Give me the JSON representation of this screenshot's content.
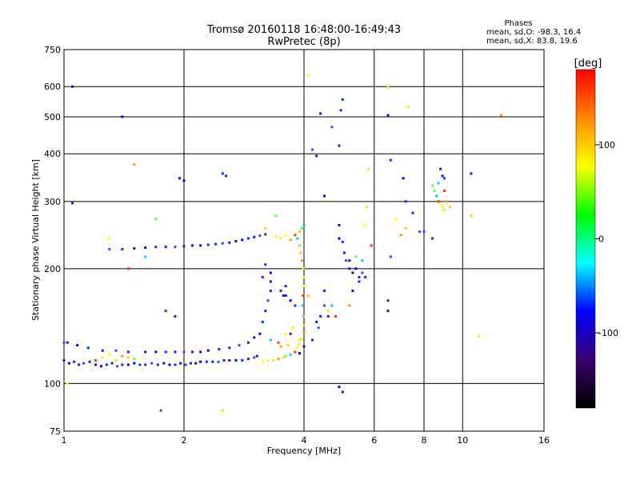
{
  "chart_data": {
    "type": "scatter",
    "title": "Tromsø 20160118 16:48:00-16:49:43",
    "subtitle": "RwPretec (8p)",
    "xlabel": "Frequency [MHz]",
    "ylabel": "Stationary phase Virtual Height [km]",
    "x_scale": "log",
    "y_scale": "log",
    "xlim": [
      1,
      16
    ],
    "ylim": [
      75,
      750
    ],
    "x_ticks": [
      1,
      2,
      4,
      6,
      8,
      10,
      16
    ],
    "x_tick_labels": [
      "1",
      "2",
      "4",
      "6",
      "8",
      "10",
      "16"
    ],
    "x_gridlines": [
      2,
      4,
      6,
      8,
      10
    ],
    "y_ticks": [
      75,
      100,
      200,
      300,
      400,
      500,
      600,
      750
    ],
    "y_tick_labels": [
      "75",
      "100",
      "200",
      "300",
      "400",
      "500",
      "600",
      "750"
    ],
    "y_gridlines": [
      100,
      200,
      300,
      400,
      500,
      600
    ],
    "grid": true,
    "legend": {
      "title": "Phases",
      "line1": "mean, sd,O: -98.3, 16.4",
      "line2": "mean, sd,X:  83.8, 19.6"
    },
    "colorbar": {
      "label": "[deg]",
      "range": [
        -180,
        180
      ],
      "ticks": [
        -100,
        0,
        100
      ],
      "tick_labels": [
        "-100",
        "0",
        "100"
      ],
      "colors": [
        "#000000",
        "#3a0070",
        "#0000ff",
        "#00ffff",
        "#00ff00",
        "#ffff00",
        "#ff8800",
        "#ff0000"
      ]
    },
    "series": [
      {
        "points": [
          [
            1.0,
            115
          ],
          [
            1.03,
            113
          ],
          [
            1.06,
            114
          ],
          [
            1.09,
            112
          ],
          [
            1.12,
            113
          ],
          [
            1.16,
            114
          ],
          [
            1.2,
            112
          ],
          [
            1.24,
            111
          ],
          [
            1.28,
            112
          ],
          [
            1.32,
            113
          ],
          [
            1.36,
            111
          ],
          [
            1.4,
            112
          ],
          [
            1.45,
            112
          ],
          [
            1.5,
            113
          ],
          [
            1.55,
            112
          ],
          [
            1.6,
            112
          ],
          [
            1.66,
            113
          ],
          [
            1.72,
            112
          ],
          [
            1.78,
            113
          ],
          [
            1.84,
            112
          ],
          [
            1.9,
            112
          ],
          [
            1.96,
            113
          ],
          [
            2.02,
            112
          ],
          [
            2.08,
            113
          ],
          [
            2.14,
            113
          ],
          [
            2.2,
            114
          ],
          [
            2.28,
            114
          ],
          [
            2.36,
            114
          ],
          [
            2.44,
            114
          ],
          [
            2.52,
            115
          ],
          [
            2.6,
            115
          ],
          [
            2.7,
            115
          ],
          [
            2.8,
            115
          ],
          [
            2.9,
            116
          ],
          [
            3.0,
            117
          ],
          [
            3.05,
            118
          ],
          [
            1.02,
            128
          ],
          [
            1.08,
            126
          ],
          [
            1.15,
            124
          ],
          [
            1.25,
            122
          ],
          [
            1.35,
            122
          ],
          [
            1.45,
            121
          ],
          [
            1.6,
            121
          ],
          [
            1.7,
            121
          ],
          [
            1.8,
            121
          ],
          [
            1.9,
            121
          ],
          [
            2.0,
            121
          ],
          [
            2.1,
            121
          ],
          [
            2.2,
            121
          ],
          [
            2.3,
            122
          ],
          [
            2.45,
            123
          ],
          [
            2.6,
            124
          ],
          [
            2.75,
            126
          ],
          [
            2.9,
            128
          ],
          [
            3.0,
            132
          ],
          [
            3.1,
            135
          ],
          [
            3.15,
            145
          ],
          [
            3.2,
            155
          ],
          [
            3.25,
            165
          ],
          [
            3.3,
            175
          ],
          [
            3.3,
            185
          ],
          [
            3.3,
            195
          ],
          [
            3.2,
            205
          ],
          [
            3.15,
            190
          ],
          [
            1.3,
            225
          ],
          [
            1.4,
            225
          ],
          [
            1.5,
            226
          ],
          [
            1.6,
            227
          ],
          [
            1.7,
            228
          ],
          [
            1.8,
            228
          ],
          [
            1.9,
            228
          ],
          [
            2.0,
            229
          ],
          [
            2.1,
            230
          ],
          [
            2.2,
            230
          ],
          [
            2.3,
            231
          ],
          [
            2.4,
            232
          ],
          [
            2.5,
            233
          ],
          [
            2.6,
            234
          ],
          [
            2.7,
            236
          ],
          [
            2.8,
            238
          ],
          [
            2.9,
            240
          ],
          [
            3.0,
            242
          ],
          [
            3.1,
            244
          ],
          [
            3.2,
            246
          ],
          [
            1.95,
            345
          ],
          [
            2.0,
            340
          ],
          [
            2.5,
            355
          ],
          [
            2.55,
            350
          ],
          [
            1.0,
            128
          ],
          [
            1.05,
            297
          ],
          [
            1.05,
            600
          ],
          [
            1.4,
            500
          ],
          [
            1.8,
            155
          ],
          [
            1.9,
            150
          ],
          [
            1.75,
            85
          ],
          [
            3.5,
            175
          ],
          [
            3.6,
            170
          ],
          [
            3.7,
            165
          ],
          [
            3.8,
            160
          ],
          [
            4.3,
            145
          ],
          [
            4.5,
            160
          ],
          [
            4.6,
            150
          ],
          [
            4.9,
            260
          ],
          [
            4.9,
            240
          ],
          [
            5.0,
            235
          ],
          [
            5.05,
            220
          ],
          [
            5.1,
            210
          ],
          [
            5.2,
            200
          ],
          [
            5.3,
            195
          ],
          [
            5.4,
            200
          ],
          [
            5.5,
            190
          ],
          [
            5.5,
            185
          ],
          [
            5.6,
            195
          ],
          [
            5.7,
            190
          ],
          [
            5.0,
            95
          ],
          [
            4.9,
            98
          ],
          [
            5.0,
            555
          ],
          [
            4.95,
            520
          ],
          [
            4.2,
            410
          ],
          [
            4.3,
            395
          ],
          [
            4.4,
            510
          ],
          [
            4.5,
            310
          ],
          [
            6.5,
            505
          ],
          [
            6.6,
            385
          ],
          [
            6.6,
            215
          ],
          [
            6.5,
            165
          ],
          [
            6.5,
            155
          ],
          [
            7.1,
            345
          ],
          [
            7.2,
            300
          ],
          [
            7.5,
            280
          ],
          [
            8.0,
            250
          ],
          [
            8.4,
            240
          ],
          [
            8.8,
            365
          ],
          [
            8.9,
            350
          ],
          [
            9.0,
            345
          ],
          [
            10.5,
            355
          ],
          [
            7.8,
            250
          ],
          [
            4.2,
            130
          ],
          [
            4.0,
            125
          ],
          [
            3.9,
            120
          ],
          [
            3.6,
            180
          ],
          [
            3.55,
            170
          ],
          [
            4.7,
            470
          ],
          [
            4.9,
            420
          ],
          [
            5.2,
            210
          ],
          [
            5.3,
            175
          ],
          [
            4.5,
            175
          ],
          [
            4.4,
            150
          ],
          [
            4.35,
            140
          ],
          [
            3.7,
            135
          ]
        ]
      },
      {
        "points": [
          [
            3.15,
            114
          ],
          [
            3.25,
            115
          ],
          [
            3.35,
            115
          ],
          [
            3.45,
            116
          ],
          [
            3.55,
            117
          ],
          [
            3.6,
            118
          ],
          [
            3.7,
            119
          ],
          [
            3.8,
            121
          ],
          [
            3.85,
            124
          ],
          [
            3.9,
            127
          ],
          [
            3.95,
            131
          ],
          [
            4.0,
            136
          ],
          [
            4.0,
            142
          ],
          [
            3.98,
            150
          ],
          [
            3.97,
            160
          ],
          [
            3.98,
            170
          ],
          [
            4.0,
            180
          ],
          [
            4.0,
            190
          ],
          [
            3.98,
            200
          ],
          [
            3.95,
            210
          ],
          [
            3.92,
            220
          ],
          [
            3.9,
            230
          ],
          [
            3.85,
            240
          ],
          [
            3.8,
            245
          ],
          [
            3.6,
            245
          ],
          [
            3.4,
            243
          ],
          [
            3.5,
            240
          ],
          [
            3.7,
            238
          ],
          [
            3.9,
            250
          ],
          [
            3.95,
            255
          ],
          [
            4.0,
            260
          ],
          [
            1.2,
            115
          ],
          [
            1.25,
            117
          ],
          [
            1.3,
            119
          ],
          [
            1.35,
            115
          ],
          [
            1.4,
            118
          ],
          [
            1.45,
            117
          ],
          [
            1.5,
            116
          ],
          [
            3.3,
            130
          ],
          [
            3.45,
            128
          ],
          [
            3.6,
            135
          ],
          [
            3.75,
            140
          ],
          [
            3.9,
            130
          ],
          [
            3.5,
            125
          ],
          [
            3.65,
            126
          ],
          [
            8.5,
            320
          ],
          [
            8.6,
            310
          ],
          [
            8.7,
            300
          ],
          [
            8.8,
            295
          ],
          [
            8.9,
            290
          ],
          [
            9.0,
            285
          ],
          [
            9.1,
            300
          ],
          [
            9.3,
            290
          ],
          [
            8.4,
            330
          ],
          [
            8.7,
            335
          ],
          [
            9.0,
            320
          ],
          [
            5.7,
            260
          ],
          [
            5.75,
            290
          ],
          [
            5.8,
            365
          ],
          [
            7.0,
            245
          ],
          [
            7.2,
            255
          ],
          [
            5.4,
            215
          ],
          [
            5.6,
            210
          ],
          [
            5.9,
            230
          ],
          [
            4.1,
            640
          ],
          [
            6.5,
            600
          ],
          [
            7.3,
            530
          ],
          [
            12.5,
            505
          ],
          [
            10.5,
            275
          ],
          [
            1.7,
            270
          ],
          [
            1.6,
            215
          ],
          [
            1.45,
            200
          ],
          [
            1.3,
            240
          ],
          [
            1.02,
            100
          ],
          [
            2.5,
            85
          ],
          [
            1.5,
            375
          ],
          [
            3.2,
            255
          ],
          [
            3.4,
            275
          ],
          [
            4.7,
            160
          ],
          [
            4.8,
            150
          ],
          [
            6.8,
            270
          ],
          [
            11.0,
            133
          ],
          [
            4.6,
            155
          ],
          [
            5.2,
            160
          ],
          [
            4.1,
            170
          ]
        ]
      }
    ]
  }
}
